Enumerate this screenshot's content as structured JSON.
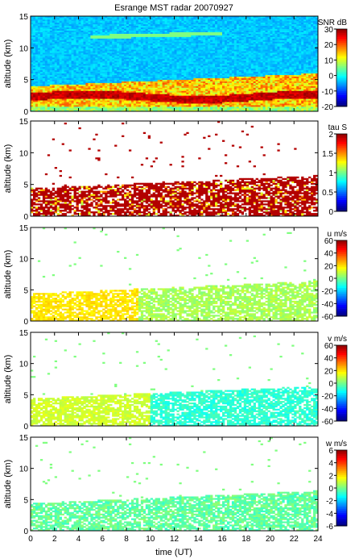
{
  "chart_data": {
    "type": "heatmap",
    "title": "Esrange MST radar 20070927",
    "xlabel": "time (UT)",
    "xlim": [
      0,
      24
    ],
    "x_ticks": [
      0,
      2,
      4,
      6,
      8,
      10,
      12,
      14,
      16,
      18,
      20,
      22,
      24
    ],
    "panels": [
      {
        "name": "snr",
        "ylabel": "altitude (km)",
        "ylim": [
          0,
          15
        ],
        "y_ticks": [
          0,
          5,
          10,
          15
        ],
        "colorbar": {
          "label": "SNR dB",
          "range": [
            -20,
            30
          ],
          "ticks": [
            30,
            20,
            10,
            0,
            -10,
            -20
          ]
        }
      },
      {
        "name": "tau",
        "ylabel": "altitude (km)",
        "ylim": [
          0,
          15
        ],
        "y_ticks": [
          0,
          5,
          10,
          15
        ],
        "colorbar": {
          "label": "tau S",
          "range": [
            0,
            2
          ],
          "ticks": [
            2,
            1.5,
            1,
            0.5,
            0
          ]
        }
      },
      {
        "name": "u",
        "ylabel": "altitude (km)",
        "ylim": [
          0,
          15
        ],
        "y_ticks": [
          0,
          5,
          10,
          15
        ],
        "colorbar": {
          "label": "u m/s",
          "range": [
            -60,
            60
          ],
          "ticks": [
            60,
            40,
            20,
            0,
            -20,
            -40,
            -60
          ]
        }
      },
      {
        "name": "v",
        "ylabel": "altitude (km)",
        "ylim": [
          0,
          15
        ],
        "y_ticks": [
          0,
          5,
          10,
          15
        ],
        "colorbar": {
          "label": "v m/s",
          "range": [
            -60,
            60
          ],
          "ticks": [
            60,
            40,
            20,
            0,
            -20,
            -40,
            -60
          ]
        }
      },
      {
        "name": "w",
        "ylabel": "altitude (km)",
        "ylim": [
          0,
          15
        ],
        "y_ticks": [
          0,
          5,
          10,
          15
        ],
        "colorbar": {
          "label": "w m/s",
          "range": [
            -6,
            6
          ],
          "ticks": [
            6,
            4,
            2,
            0,
            -2,
            -4,
            -6
          ]
        }
      }
    ]
  }
}
